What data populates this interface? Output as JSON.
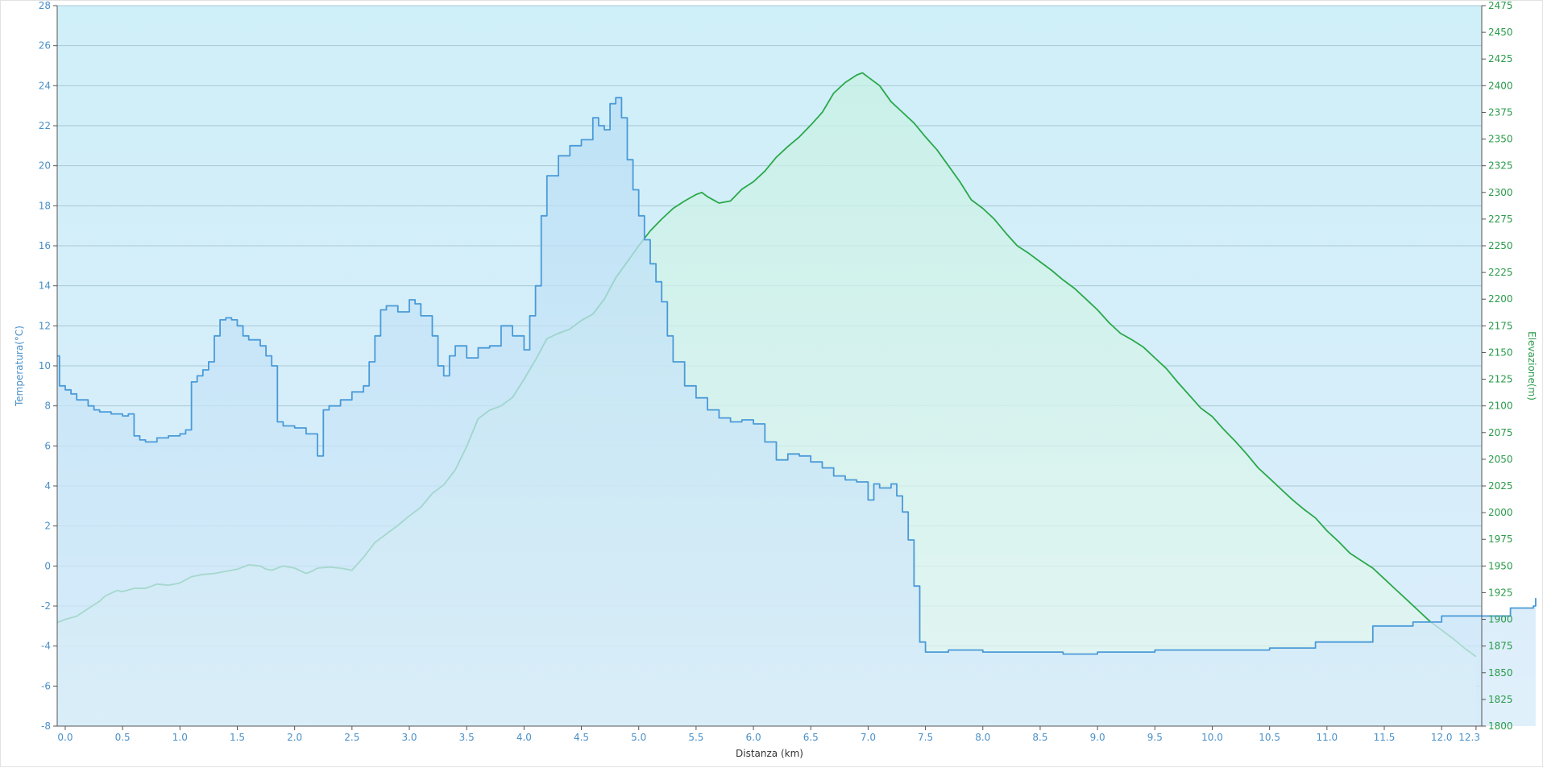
{
  "chart_data": {
    "type": "area",
    "x_axis": {
      "label": "Distanza  (km)",
      "range": [
        -0.07,
        12.35
      ],
      "ticks": [
        0.0,
        0.5,
        1.0,
        1.5,
        2.0,
        2.5,
        3.0,
        3.5,
        4.0,
        4.5,
        5.0,
        5.5,
        6.0,
        6.5,
        7.0,
        7.5,
        8.0,
        8.5,
        9.0,
        9.5,
        10.0,
        10.5,
        11.0,
        11.5,
        12.0
      ],
      "tick_labels": [
        "0.0",
        "0.5",
        "1.0",
        "1.5",
        "2.0",
        "2.5",
        "3.0",
        "3.5",
        "4.0",
        "4.5",
        "5.0",
        "5.5",
        "6.0",
        "6.5",
        "7.0",
        "7.5",
        "8.0",
        "8.5",
        "9.0",
        "9.5",
        "10.0",
        "10.5",
        "11.0",
        "11.5",
        "12.0"
      ],
      "end_label": "12.3",
      "end_value": 12.3
    },
    "y_left": {
      "label": "Temperatura(°C)",
      "range": [
        -8,
        28
      ],
      "ticks": [
        -8,
        -6,
        -4,
        -2,
        0,
        2,
        4,
        6,
        8,
        10,
        12,
        14,
        16,
        18,
        20,
        22,
        24,
        26,
        28
      ],
      "color": "#4a90c8"
    },
    "y_right": {
      "label": "Elevazione(m)",
      "range": [
        1800,
        2475
      ],
      "ticks": [
        1800,
        1825,
        1850,
        1875,
        1900,
        1925,
        1950,
        1975,
        2000,
        2025,
        2050,
        2075,
        2100,
        2125,
        2150,
        2175,
        2200,
        2225,
        2250,
        2275,
        2300,
        2325,
        2350,
        2375,
        2400,
        2425,
        2450,
        2475
      ],
      "color": "#2a9a4a"
    },
    "grid": true,
    "legend": "none",
    "series": [
      {
        "axis": "right",
        "color": "#2aa84a",
        "fill": "#d8f5ea",
        "points": [
          [
            -0.07,
            1897
          ],
          [
            0.0,
            1900
          ],
          [
            0.1,
            1903
          ],
          [
            0.2,
            1910
          ],
          [
            0.3,
            1917
          ],
          [
            0.35,
            1922
          ],
          [
            0.45,
            1927
          ],
          [
            0.5,
            1926
          ],
          [
            0.6,
            1929
          ],
          [
            0.7,
            1929
          ],
          [
            0.8,
            1933
          ],
          [
            0.9,
            1932
          ],
          [
            1.0,
            1934
          ],
          [
            1.1,
            1940
          ],
          [
            1.2,
            1942
          ],
          [
            1.3,
            1943
          ],
          [
            1.4,
            1945
          ],
          [
            1.5,
            1947
          ],
          [
            1.6,
            1951
          ],
          [
            1.7,
            1950
          ],
          [
            1.75,
            1947
          ],
          [
            1.8,
            1946
          ],
          [
            1.9,
            1950
          ],
          [
            2.0,
            1948
          ],
          [
            2.1,
            1943
          ],
          [
            2.15,
            1945
          ],
          [
            2.2,
            1948
          ],
          [
            2.3,
            1949
          ],
          [
            2.4,
            1948
          ],
          [
            2.5,
            1946
          ],
          [
            2.6,
            1958
          ],
          [
            2.7,
            1972
          ],
          [
            2.8,
            1980
          ],
          [
            2.9,
            1988
          ],
          [
            3.0,
            1997
          ],
          [
            3.1,
            2005
          ],
          [
            3.2,
            2018
          ],
          [
            3.3,
            2026
          ],
          [
            3.4,
            2040
          ],
          [
            3.5,
            2062
          ],
          [
            3.6,
            2088
          ],
          [
            3.7,
            2096
          ],
          [
            3.8,
            2100
          ],
          [
            3.9,
            2108
          ],
          [
            4.0,
            2125
          ],
          [
            4.1,
            2143
          ],
          [
            4.2,
            2163
          ],
          [
            4.3,
            2168
          ],
          [
            4.4,
            2172
          ],
          [
            4.5,
            2180
          ],
          [
            4.6,
            2186
          ],
          [
            4.7,
            2200
          ],
          [
            4.8,
            2220
          ],
          [
            4.9,
            2235
          ],
          [
            5.0,
            2250
          ],
          [
            5.1,
            2264
          ],
          [
            5.2,
            2275
          ],
          [
            5.3,
            2285
          ],
          [
            5.4,
            2292
          ],
          [
            5.5,
            2298
          ],
          [
            5.55,
            2300
          ],
          [
            5.6,
            2296
          ],
          [
            5.7,
            2290
          ],
          [
            5.8,
            2292
          ],
          [
            5.9,
            2303
          ],
          [
            6.0,
            2310
          ],
          [
            6.1,
            2320
          ],
          [
            6.2,
            2333
          ],
          [
            6.3,
            2343
          ],
          [
            6.4,
            2352
          ],
          [
            6.5,
            2363
          ],
          [
            6.6,
            2375
          ],
          [
            6.7,
            2393
          ],
          [
            6.8,
            2403
          ],
          [
            6.9,
            2410
          ],
          [
            6.95,
            2412
          ],
          [
            7.0,
            2408
          ],
          [
            7.1,
            2400
          ],
          [
            7.2,
            2385
          ],
          [
            7.3,
            2375
          ],
          [
            7.4,
            2365
          ],
          [
            7.5,
            2352
          ],
          [
            7.6,
            2340
          ],
          [
            7.7,
            2325
          ],
          [
            7.8,
            2310
          ],
          [
            7.9,
            2293
          ],
          [
            8.0,
            2285
          ],
          [
            8.1,
            2275
          ],
          [
            8.2,
            2262
          ],
          [
            8.3,
            2250
          ],
          [
            8.4,
            2243
          ],
          [
            8.5,
            2235
          ],
          [
            8.6,
            2227
          ],
          [
            8.7,
            2218
          ],
          [
            8.8,
            2210
          ],
          [
            8.9,
            2200
          ],
          [
            9.0,
            2190
          ],
          [
            9.1,
            2178
          ],
          [
            9.2,
            2168
          ],
          [
            9.3,
            2162
          ],
          [
            9.4,
            2155
          ],
          [
            9.5,
            2145
          ],
          [
            9.6,
            2135
          ],
          [
            9.7,
            2122
          ],
          [
            9.8,
            2110
          ],
          [
            9.9,
            2098
          ],
          [
            10.0,
            2090
          ],
          [
            10.1,
            2078
          ],
          [
            10.2,
            2067
          ],
          [
            10.3,
            2055
          ],
          [
            10.4,
            2042
          ],
          [
            10.5,
            2032
          ],
          [
            10.6,
            2022
          ],
          [
            10.7,
            2012
          ],
          [
            10.8,
            2003
          ],
          [
            10.9,
            1995
          ],
          [
            11.0,
            1983
          ],
          [
            11.1,
            1973
          ],
          [
            11.2,
            1962
          ],
          [
            11.3,
            1955
          ],
          [
            11.4,
            1948
          ],
          [
            11.5,
            1938
          ],
          [
            11.6,
            1928
          ],
          [
            11.7,
            1918
          ],
          [
            11.8,
            1908
          ],
          [
            11.9,
            1898
          ],
          [
            12.0,
            1890
          ],
          [
            12.1,
            1882
          ],
          [
            12.2,
            1873
          ],
          [
            12.3,
            1865
          ]
        ]
      },
      {
        "axis": "left",
        "color": "#4a9ad8",
        "fill": "#c6e6f7",
        "step": true,
        "points": [
          [
            -0.07,
            10.5
          ],
          [
            -0.05,
            9.0
          ],
          [
            0.0,
            8.8
          ],
          [
            0.05,
            8.6
          ],
          [
            0.1,
            8.3
          ],
          [
            0.2,
            8.0
          ],
          [
            0.25,
            7.8
          ],
          [
            0.3,
            7.7
          ],
          [
            0.4,
            7.6
          ],
          [
            0.5,
            7.5
          ],
          [
            0.55,
            7.6
          ],
          [
            0.6,
            6.5
          ],
          [
            0.65,
            6.3
          ],
          [
            0.7,
            6.2
          ],
          [
            0.8,
            6.4
          ],
          [
            0.9,
            6.5
          ],
          [
            1.0,
            6.6
          ],
          [
            1.05,
            6.8
          ],
          [
            1.1,
            9.2
          ],
          [
            1.15,
            9.5
          ],
          [
            1.2,
            9.8
          ],
          [
            1.25,
            10.2
          ],
          [
            1.3,
            11.5
          ],
          [
            1.35,
            12.3
          ],
          [
            1.4,
            12.4
          ],
          [
            1.45,
            12.3
          ],
          [
            1.5,
            12.0
          ],
          [
            1.55,
            11.5
          ],
          [
            1.6,
            11.3
          ],
          [
            1.7,
            11.0
          ],
          [
            1.75,
            10.5
          ],
          [
            1.8,
            10.0
          ],
          [
            1.85,
            7.2
          ],
          [
            1.9,
            7.0
          ],
          [
            2.0,
            6.9
          ],
          [
            2.1,
            6.6
          ],
          [
            2.2,
            5.5
          ],
          [
            2.25,
            7.8
          ],
          [
            2.3,
            8.0
          ],
          [
            2.4,
            8.3
          ],
          [
            2.5,
            8.7
          ],
          [
            2.6,
            9.0
          ],
          [
            2.65,
            10.2
          ],
          [
            2.7,
            11.5
          ],
          [
            2.75,
            12.8
          ],
          [
            2.8,
            13.0
          ],
          [
            2.9,
            12.7
          ],
          [
            3.0,
            13.3
          ],
          [
            3.05,
            13.1
          ],
          [
            3.1,
            12.5
          ],
          [
            3.2,
            11.5
          ],
          [
            3.25,
            10.0
          ],
          [
            3.3,
            9.5
          ],
          [
            3.35,
            10.5
          ],
          [
            3.4,
            11.0
          ],
          [
            3.5,
            10.4
          ],
          [
            3.6,
            10.9
          ],
          [
            3.7,
            11.0
          ],
          [
            3.8,
            12.0
          ],
          [
            3.9,
            11.5
          ],
          [
            4.0,
            10.8
          ],
          [
            4.05,
            12.5
          ],
          [
            4.1,
            14.0
          ],
          [
            4.15,
            17.5
          ],
          [
            4.2,
            19.5
          ],
          [
            4.3,
            20.5
          ],
          [
            4.4,
            21.0
          ],
          [
            4.5,
            21.3
          ],
          [
            4.6,
            22.4
          ],
          [
            4.65,
            22.0
          ],
          [
            4.7,
            21.8
          ],
          [
            4.75,
            23.1
          ],
          [
            4.8,
            23.4
          ],
          [
            4.85,
            22.4
          ],
          [
            4.9,
            20.3
          ],
          [
            4.95,
            18.8
          ],
          [
            5.0,
            17.5
          ],
          [
            5.05,
            16.3
          ],
          [
            5.1,
            15.1
          ],
          [
            5.15,
            14.2
          ],
          [
            5.2,
            13.2
          ],
          [
            5.25,
            11.5
          ],
          [
            5.3,
            10.2
          ],
          [
            5.4,
            9.0
          ],
          [
            5.5,
            8.4
          ],
          [
            5.6,
            7.8
          ],
          [
            5.7,
            7.4
          ],
          [
            5.8,
            7.2
          ],
          [
            5.9,
            7.3
          ],
          [
            6.0,
            7.1
          ],
          [
            6.1,
            6.2
          ],
          [
            6.2,
            5.3
          ],
          [
            6.3,
            5.6
          ],
          [
            6.4,
            5.5
          ],
          [
            6.5,
            5.2
          ],
          [
            6.6,
            4.9
          ],
          [
            6.7,
            4.5
          ],
          [
            6.8,
            4.3
          ],
          [
            6.9,
            4.2
          ],
          [
            7.0,
            3.3
          ],
          [
            7.05,
            4.1
          ],
          [
            7.1,
            3.9
          ],
          [
            7.2,
            4.1
          ],
          [
            7.25,
            3.5
          ],
          [
            7.3,
            2.7
          ],
          [
            7.35,
            1.3
          ],
          [
            7.4,
            -1.0
          ],
          [
            7.45,
            -3.8
          ],
          [
            7.5,
            -4.3
          ],
          [
            7.7,
            -4.2
          ],
          [
            8.0,
            -4.3
          ],
          [
            8.5,
            -4.3
          ],
          [
            8.7,
            -4.4
          ],
          [
            9.0,
            -4.3
          ],
          [
            9.5,
            -4.2
          ],
          [
            10.0,
            -4.2
          ],
          [
            10.5,
            -4.1
          ],
          [
            10.9,
            -3.8
          ],
          [
            11.4,
            -3.0
          ],
          [
            11.75,
            -2.8
          ],
          [
            12.0,
            -2.5
          ],
          [
            12.4,
            -2.5
          ],
          [
            12.6,
            -2.1
          ],
          [
            12.8,
            -2.0
          ],
          [
            12.82,
            -1.6
          ]
        ]
      }
    ]
  }
}
